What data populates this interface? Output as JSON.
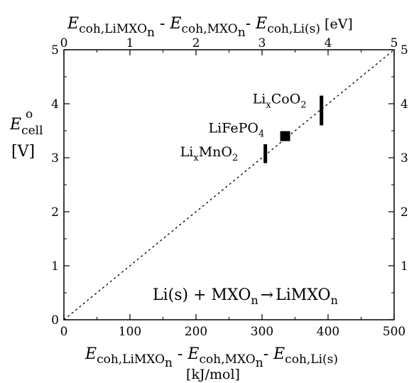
{
  "chart_data": {
    "type": "scatter",
    "bottom_axis": {
      "title_main": "E",
      "title_sub_1": "coh,LiMXO",
      "title_sub_1_n": "n",
      "title_sep_1": " - ",
      "title_sub_2": "coh,MXO",
      "title_sub_2_n": "n",
      "title_sep_2": "- ",
      "title_sub_3": "coh,Li(s)",
      "unit": "[kJ/mol]",
      "range": [
        0,
        500
      ],
      "ticks": [
        "0",
        "100",
        "200",
        "300",
        "400",
        "500"
      ]
    },
    "top_axis": {
      "title_main": "E",
      "title_sub_1": "coh,LiMXO",
      "title_sub_1_n": "n",
      "title_sep_1": " - ",
      "title_sub_2": "coh,MXO",
      "title_sub_2_n": "n",
      "title_sep_2": "- ",
      "title_sub_3": "coh,Li(s)",
      "unit": "[eV]",
      "range": [
        0,
        5
      ],
      "ticks": [
        "0",
        "1",
        "2",
        "3",
        "4",
        "5"
      ]
    },
    "left_axis": {
      "title_main": "E",
      "title_sup": "o",
      "title_sub": "cell",
      "unit": "[V]",
      "range": [
        0,
        5
      ],
      "ticks": [
        "0",
        "1",
        "2",
        "3",
        "4",
        "5"
      ]
    },
    "right_axis": {
      "range": [
        0,
        5
      ],
      "ticks": [
        "1",
        "2",
        "3",
        "4",
        "5"
      ]
    },
    "reference_line": {
      "style": "dotted",
      "from": [
        0,
        0
      ],
      "to": [
        500,
        5
      ]
    },
    "points": [
      {
        "label_main": "Li",
        "label_sub": "x",
        "label_rest": "CoO",
        "label_rest_sub": "2",
        "x": 390,
        "y": 3.9,
        "y_low": 3.6,
        "y_high": 4.15,
        "marker": "bar"
      },
      {
        "label_main": "LiFePO",
        "label_sub": "",
        "label_rest": "",
        "label_rest_sub": "4",
        "x": 335,
        "y": 3.4,
        "y_low": 3.4,
        "y_high": 3.4,
        "marker": "square"
      },
      {
        "label_main": "Li",
        "label_sub": "x",
        "label_rest": "MnO",
        "label_rest_sub": "2",
        "x": 305,
        "y": 3.0,
        "y_low": 2.9,
        "y_high": 3.25,
        "marker": "bar"
      }
    ],
    "annotation": {
      "left": "Li(s) + MXO",
      "left_sub": "n",
      "arrow": "→",
      "right": "LiMXO",
      "right_sub": "n"
    },
    "grid": false
  }
}
